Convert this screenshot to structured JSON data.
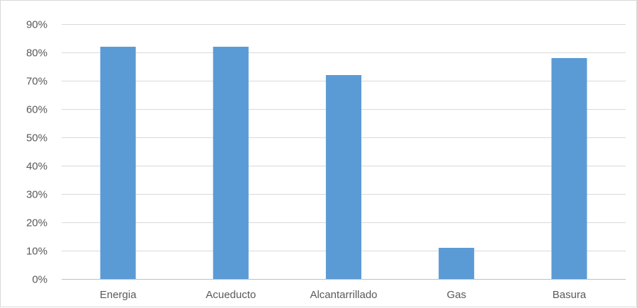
{
  "chart_data": {
    "type": "bar",
    "title": "",
    "xlabel": "",
    "ylabel": "",
    "categories": [
      "Energia",
      "Acueducto",
      "Alcantarrillado",
      "Gas",
      "Basura"
    ],
    "values": [
      82,
      82,
      72,
      11,
      78
    ],
    "value_unit": "%",
    "ylim": [
      0,
      90
    ],
    "ytick_step": 10,
    "ytick_labels": [
      "0%",
      "10%",
      "20%",
      "30%",
      "40%",
      "50%",
      "60%",
      "70%",
      "80%",
      "90%"
    ],
    "grid": true,
    "legend": "none",
    "bar_color": "#5b9bd5"
  }
}
